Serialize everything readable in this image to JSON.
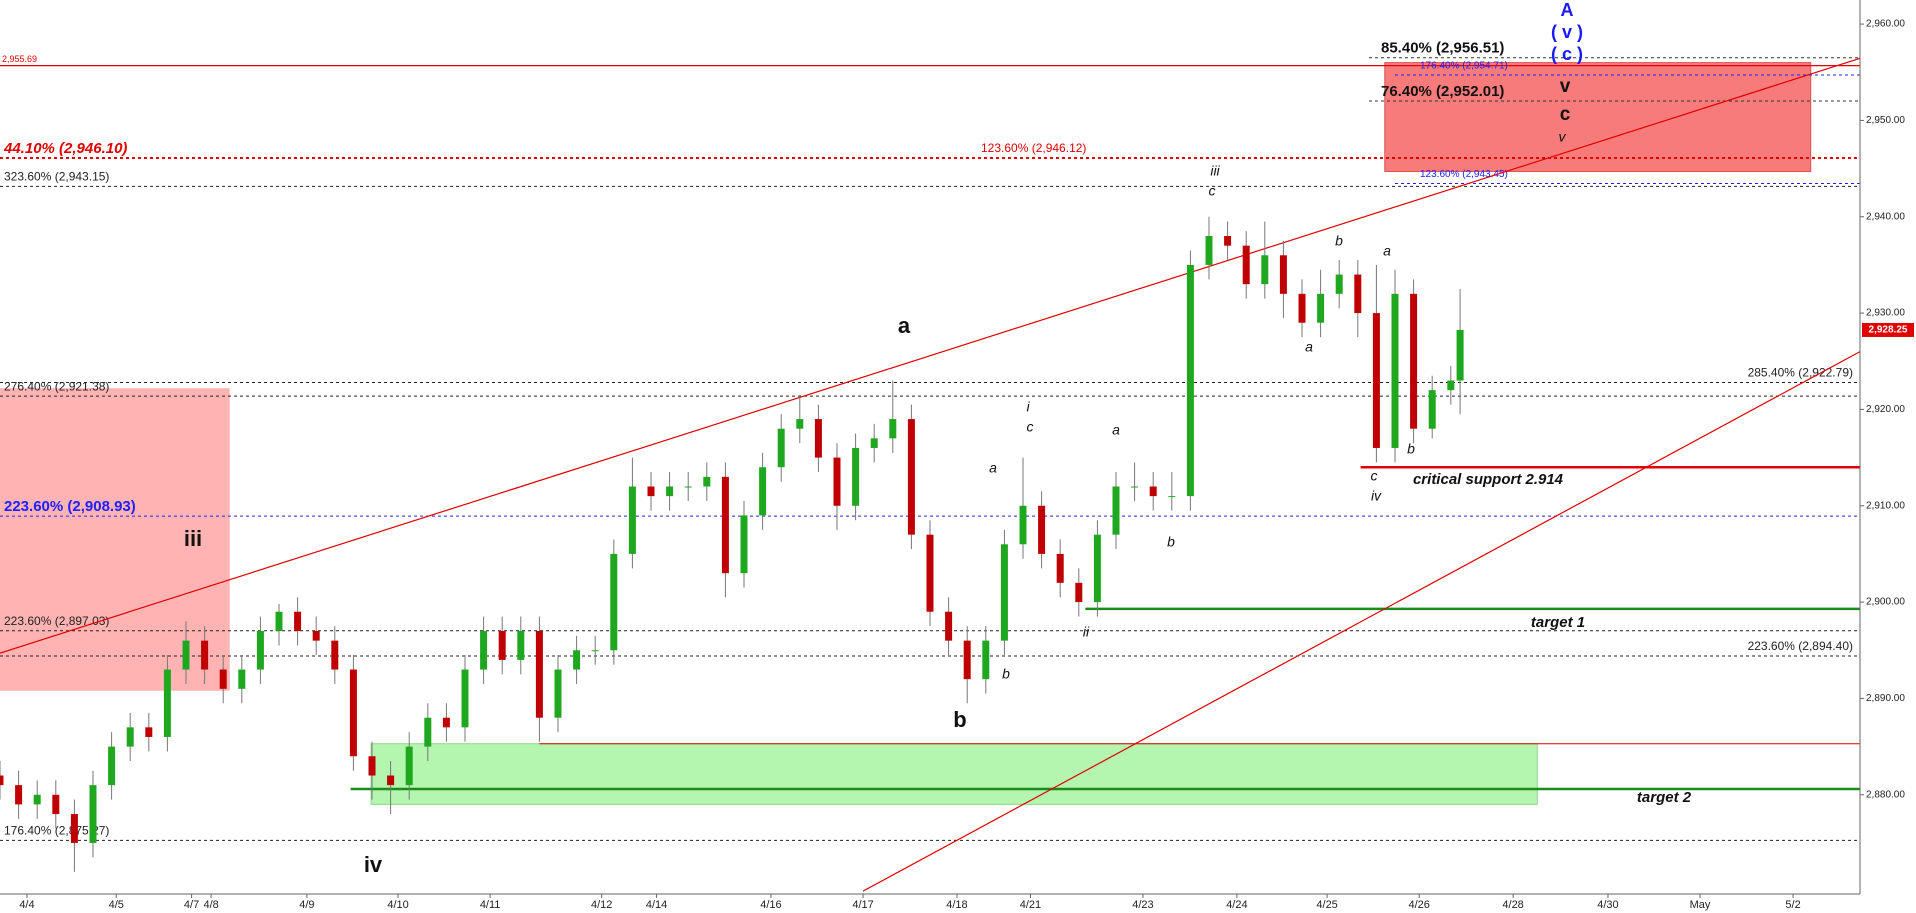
{
  "chart_data": {
    "type": "candlestick",
    "up_color": "#1fa81f",
    "down_color": "#c00000",
    "xlim": [
      0,
      200
    ],
    "ylim": [
      2869.7,
      2962.5
    ],
    "xticks": [
      {
        "value": 2.9,
        "label": "4/4"
      },
      {
        "value": 12.5,
        "label": "4/5"
      },
      {
        "value": 20.6,
        "label": "4/7"
      },
      {
        "value": 22.7,
        "label": "4/8"
      },
      {
        "value": 33.0,
        "label": "4/9"
      },
      {
        "value": 42.8,
        "label": "4/10"
      },
      {
        "value": 52.7,
        "label": "4/11"
      },
      {
        "value": 64.7,
        "label": "4/12"
      },
      {
        "value": 70.6,
        "label": "4/14"
      },
      {
        "value": 82.9,
        "label": "4/16"
      },
      {
        "value": 92.8,
        "label": "4/17"
      },
      {
        "value": 102.9,
        "label": "4/18"
      },
      {
        "value": 110.8,
        "label": "4/21"
      },
      {
        "value": 122.9,
        "label": "4/23"
      },
      {
        "value": 133.0,
        "label": "4/24"
      },
      {
        "value": 142.7,
        "label": "4/25"
      },
      {
        "value": 152.6,
        "label": "4/26"
      },
      {
        "value": 162.7,
        "label": "4/28"
      },
      {
        "value": 172.9,
        "label": "4/30"
      },
      {
        "value": 182.8,
        "label": "May"
      },
      {
        "value": 192.8,
        "label": "5/2"
      }
    ],
    "yticks": [
      {
        "value": 2960,
        "label": "2,960.00"
      },
      {
        "value": 2950,
        "label": "2,950.00"
      },
      {
        "value": 2940,
        "label": "2,940.00"
      },
      {
        "value": 2930,
        "label": "2,930.00"
      },
      {
        "value": 2920,
        "label": "2,920.00"
      },
      {
        "value": 2910,
        "label": "2,910.00"
      },
      {
        "value": 2900,
        "label": "2,900.00"
      },
      {
        "value": 2890,
        "label": "2,890.00"
      },
      {
        "value": 2880,
        "label": "2,880.00"
      }
    ],
    "x": [
      0,
      2,
      4,
      6,
      8,
      10,
      12,
      14,
      16,
      18,
      20,
      22,
      24,
      26,
      28,
      30,
      32,
      34,
      36,
      38,
      40,
      42,
      44,
      46,
      48,
      50,
      52,
      54,
      56,
      58,
      60,
      62,
      64,
      66,
      68,
      70,
      72,
      74,
      76,
      78,
      80,
      82,
      84,
      86,
      88,
      90,
      92,
      94,
      96,
      98,
      100,
      102,
      104,
      106,
      108,
      110,
      112,
      114,
      116,
      118,
      120,
      122,
      124,
      126,
      128,
      130,
      132,
      134,
      136,
      138,
      140,
      142,
      144,
      146,
      148,
      150,
      152,
      154,
      156,
      157
    ],
    "open": [
      2882,
      2881,
      2879,
      2880,
      2878,
      2875,
      2881,
      2885,
      2887,
      2886,
      2893,
      2896,
      2893,
      2891,
      2893,
      2897,
      2899,
      2897,
      2896,
      2893,
      2884,
      2882,
      2881,
      2885,
      2888,
      2887,
      2893,
      2897,
      2894,
      2897,
      2888,
      2893,
      2895,
      2895,
      2905,
      2912,
      2911,
      2912,
      2912,
      2913,
      2903,
      2909,
      2914,
      2918,
      2919,
      2915,
      2910,
      2916,
      2917,
      2919,
      2907,
      2899,
      2896,
      2892,
      2896,
      2906,
      2910,
      2905,
      2902,
      2900,
      2907,
      2912,
      2912,
      2911,
      2911,
      2935,
      2938,
      2937,
      2933,
      2936,
      2932,
      2929,
      2932,
      2934,
      2930,
      2916,
      2932,
      2918,
      2922,
      2923
    ],
    "high": [
      2883.5,
      2882.5,
      2881.5,
      2881.5,
      2879.5,
      2882.5,
      2886.5,
      2888.5,
      2888.5,
      2894.5,
      2898,
      2897.5,
      2894.5,
      2894.5,
      2898.5,
      2899.8,
      2900.5,
      2898.5,
      2897.5,
      2894.5,
      2885.5,
      2883.5,
      2886.5,
      2889.5,
      2889.5,
      2894.5,
      2898.5,
      2898.5,
      2898.5,
      2898.5,
      2894.5,
      2896.5,
      2896.5,
      2906.5,
      2915,
      2913.5,
      2913.5,
      2913.5,
      2914.5,
      2914.5,
      2910.5,
      2915.5,
      2919.5,
      2921.5,
      2920.5,
      2916.5,
      2917.5,
      2918.5,
      2923,
      2920.5,
      2908.5,
      2900.5,
      2897.5,
      2897.5,
      2907.5,
      2915,
      2911.5,
      2906.5,
      2903.5,
      2908.5,
      2913.5,
      2914.5,
      2913.5,
      2913.5,
      2936.5,
      2940,
      2939.5,
      2938.5,
      2939.5,
      2937.5,
      2933.5,
      2934.5,
      2935.5,
      2935.5,
      2935,
      2934.5,
      2933.5,
      2923.5,
      2924.5,
      2932.5
    ],
    "low": [
      2879.5,
      2877.5,
      2877.5,
      2876.5,
      2872,
      2873.5,
      2879.5,
      2883.5,
      2884.5,
      2884.5,
      2891.5,
      2891.5,
      2889.5,
      2889.5,
      2891.5,
      2895.5,
      2895.5,
      2894.5,
      2891.5,
      2882.5,
      2879.5,
      2878,
      2879.5,
      2883.5,
      2885.5,
      2885.5,
      2891.5,
      2892.5,
      2892.5,
      2885.5,
      2886.5,
      2891.5,
      2893.5,
      2893.5,
      2903.5,
      2909.5,
      2909.5,
      2910.5,
      2910.5,
      2900.5,
      2901.5,
      2907.5,
      2912.5,
      2916.5,
      2913.5,
      2907.5,
      2908.5,
      2914.5,
      2915.5,
      2905.5,
      2897.5,
      2894.5,
      2889.5,
      2890.5,
      2894.5,
      2904.5,
      2903.5,
      2900.5,
      2898.5,
      2898.5,
      2905.5,
      2910.5,
      2909.5,
      2909.5,
      2909.5,
      2933.5,
      2935.5,
      2931.5,
      2931.5,
      2929.5,
      2927.5,
      2927.5,
      2930.5,
      2927.5,
      2914.5,
      2914.5,
      2916.5,
      2917,
      2920.5,
      2919.5
    ],
    "close": [
      2881,
      2879,
      2880,
      2878,
      2875,
      2881,
      2885,
      2887,
      2886,
      2893,
      2896,
      2893,
      2891,
      2893,
      2897,
      2899,
      2897,
      2896,
      2893,
      2884,
      2882,
      2881,
      2885,
      2888,
      2887,
      2893,
      2897,
      2894,
      2897,
      2888,
      2893,
      2895,
      2895,
      2905,
      2912,
      2911,
      2912,
      2912,
      2913,
      2903,
      2909,
      2914,
      2918,
      2919,
      2915,
      2910,
      2916,
      2917,
      2919,
      2907,
      2899,
      2896,
      2892,
      2896,
      2906,
      2910,
      2905,
      2902,
      2900,
      2907,
      2912,
      2912,
      2911,
      2911,
      2935,
      2938,
      2937,
      2933,
      2936,
      2932,
      2929,
      2932,
      2934,
      2930,
      2916,
      2932,
      2918,
      2922,
      2923,
      2928.25
    ],
    "last_price": {
      "value": 2928.25,
      "label": "2,928.25"
    },
    "zones": [
      {
        "x": [
          0,
          24.7
        ],
        "y": [
          2890.8,
          2922.2
        ],
        "color": "#ffb3b3"
      },
      {
        "x": [
          148.9,
          194.7
        ],
        "y": [
          2944.7,
          2956.0
        ],
        "color": "#f77b7b"
      },
      {
        "x": [
          39.9,
          165.3
        ],
        "y": [
          2879.0,
          2885.3
        ],
        "color": "#b4f5b0"
      }
    ],
    "levels": [
      {
        "label": "2,955.69",
        "value": 2955.69,
        "x": [
          0,
          200
        ],
        "color": "#e00000"
      },
      {
        "label": "85.40% (2,956.51)",
        "value": 2956.51,
        "x": [
          147.2,
          200
        ],
        "color": "#111111"
      },
      {
        "label": "176.40% (2,954.71)",
        "value": 2954.71,
        "x": [
          150,
          200
        ],
        "color": "#2020ff"
      },
      {
        "label": "76.40% (2,952.01)",
        "value": 2952.01,
        "x": [
          147.2,
          200
        ],
        "color": "#111111"
      },
      {
        "label": "44.10% (2,946.10)",
        "value": 2946.1,
        "x": [
          0,
          200
        ],
        "color": "#e00000"
      },
      {
        "label": "123.60% (2,946.12)",
        "value": 2946.12,
        "x": [
          0,
          200
        ],
        "color": "#e00000"
      },
      {
        "label": "323.60% (2,943.15)",
        "value": 2943.15,
        "x": [
          0,
          200
        ],
        "color": "#222222"
      },
      {
        "label": "123.60% (2,943.45)",
        "value": 2943.45,
        "x": [
          150,
          200
        ],
        "color": "#2020ff"
      },
      {
        "label": "276.40% (2,921.38)",
        "value": 2921.38,
        "x": [
          0,
          200
        ],
        "color": "#222222"
      },
      {
        "label": "285.40% (2,922.79)",
        "value": 2922.79,
        "x": [
          0,
          200
        ],
        "color": "#222222"
      },
      {
        "label": "223.60% (2,908.93)",
        "value": 2908.93,
        "x": [
          0,
          200
        ],
        "color": "#2020ff"
      },
      {
        "label": "223.60% (2,897.03)",
        "value": 2897.03,
        "x": [
          0,
          200
        ],
        "color": "#222222"
      },
      {
        "label": "223.60% (2,894.40)",
        "value": 2894.4,
        "x": [
          0,
          200
        ],
        "color": "#222222"
      },
      {
        "label": "176.40% (2,875.27)",
        "value": 2875.27,
        "x": [
          0,
          200
        ],
        "color": "#222222"
      }
    ],
    "hlines": [
      {
        "value": 2914,
        "x": [
          146.3,
          200
        ],
        "color": "#e00000"
      },
      {
        "value": 2899.3,
        "x": [
          116.7,
          200
        ],
        "color": "#1a8c1a"
      },
      {
        "value": 2880.6,
        "x": [
          37.7,
          200
        ],
        "color": "#1a8c1a"
      },
      {
        "value": 2885.3,
        "x": [
          58.0,
          200
        ],
        "color": "#e00000"
      }
    ],
    "trendlines": [
      {
        "x": [
          0,
          200
        ],
        "y": [
          2894.7,
          2956.45
        ],
        "color": "#e00000"
      },
      {
        "x": [
          92.8,
          200
        ],
        "y": [
          2870.0,
          2926.0
        ],
        "color": "#e00000"
      }
    ],
    "annotations": [
      "a",
      "b",
      "iii",
      "iv",
      "A",
      "( v )",
      "( c )",
      "v",
      "c",
      "v",
      "iii",
      "c",
      "b",
      "a",
      "a",
      "b",
      "c",
      "iv",
      "critical support 2.914",
      "i",
      "c",
      "a",
      "a",
      "b",
      "b",
      "ii",
      "target 1",
      "target 2"
    ]
  }
}
